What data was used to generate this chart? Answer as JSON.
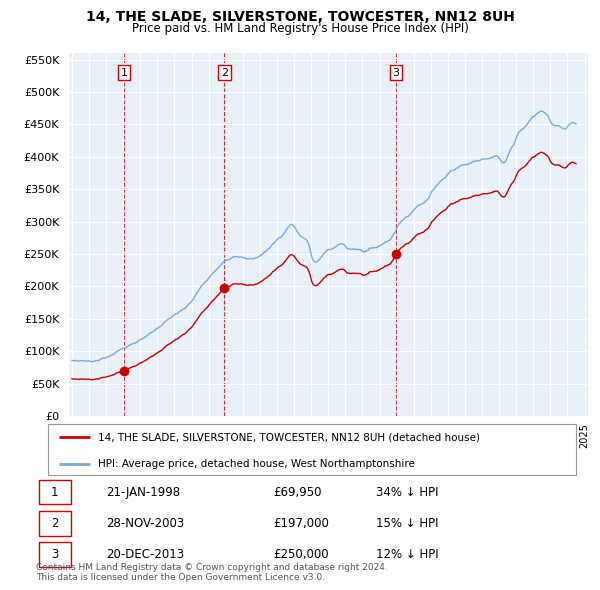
{
  "title": "14, THE SLADE, SILVERSTONE, TOWCESTER, NN12 8UH",
  "subtitle": "Price paid vs. HM Land Registry's House Price Index (HPI)",
  "bg_color": "#e8f0f8",
  "grid_color": "#ffffff",
  "sale_color": "#cc0000",
  "hpi_color": "#7aaadd",
  "vline_color": "#cc0000",
  "ylim": [
    0,
    560000
  ],
  "yticks": [
    0,
    50000,
    100000,
    150000,
    200000,
    250000,
    300000,
    350000,
    400000,
    450000,
    500000,
    550000
  ],
  "sales": [
    {
      "date_num": 1998.06,
      "price": 69950,
      "label": "1"
    },
    {
      "date_num": 2003.92,
      "price": 197000,
      "label": "2"
    },
    {
      "date_num": 2013.97,
      "price": 250000,
      "label": "3"
    }
  ],
  "sale_labels": [
    {
      "label": "1",
      "date": "21-JAN-1998",
      "price": "£69,950",
      "hpi": "34% ↓ HPI"
    },
    {
      "label": "2",
      "date": "28-NOV-2003",
      "price": "£197,000",
      "hpi": "15% ↓ HPI"
    },
    {
      "label": "3",
      "date": "20-DEC-2013",
      "price": "£250,000",
      "hpi": "12% ↓ HPI"
    }
  ],
  "legend_line1": "14, THE SLADE, SILVERSTONE, TOWCESTER, NN12 8UH (detached house)",
  "legend_line2": "HPI: Average price, detached house, West Northamptonshire",
  "footer": "Contains HM Land Registry data © Crown copyright and database right 2024.\nThis data is licensed under the Open Government Licence v3.0."
}
